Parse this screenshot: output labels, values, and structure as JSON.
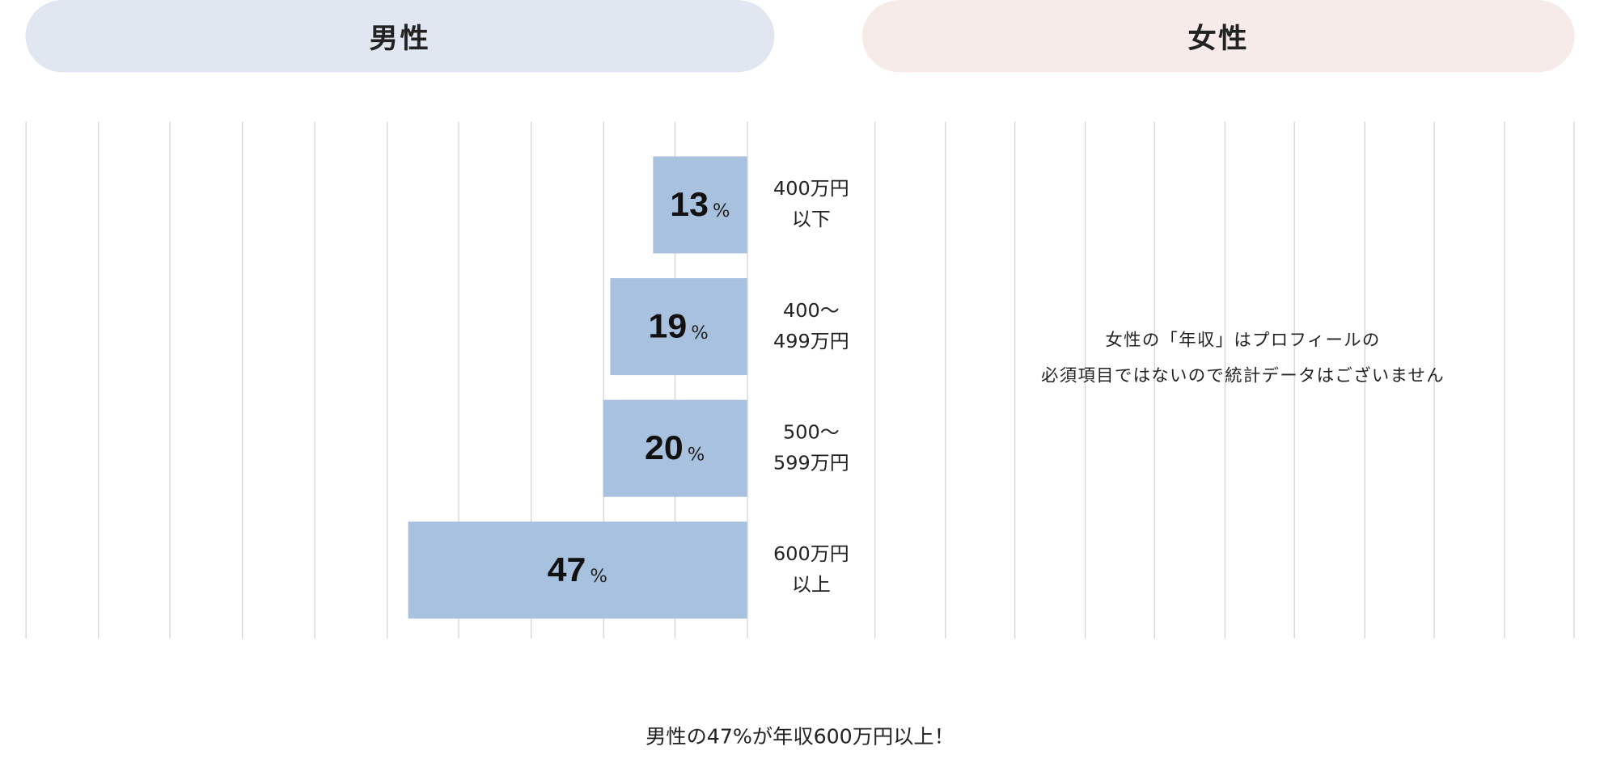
{
  "chart_data": {
    "type": "bar",
    "orientation": "horizontal",
    "panels": [
      {
        "title": "男性",
        "categories": [
          [
            "400万円",
            "以下"
          ],
          [
            "400〜",
            "499万円"
          ],
          [
            "500〜",
            "599万円"
          ],
          [
            "600万円",
            "以上"
          ]
        ],
        "values": [
          13,
          19,
          20,
          47
        ],
        "unit": "%"
      },
      {
        "title": "女性",
        "message": [
          "女性の「年収」はプロフィールの",
          "必須項目ではないので統計データはございません"
        ]
      }
    ],
    "xlim": [
      0,
      100
    ],
    "grid_step": 10,
    "grid": true,
    "caption": "男性の47%が年収600万円以上！",
    "colors": {
      "bar": "#a8c1df",
      "male_header": "#e1e7f1",
      "female_header": "#f6ebe8"
    }
  }
}
